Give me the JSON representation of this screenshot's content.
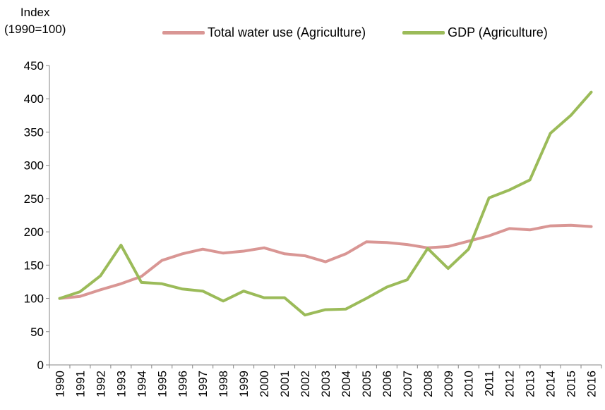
{
  "chart_data": {
    "type": "line",
    "ylabel_line1": "Index",
    "ylabel_line2": "(1990=100)",
    "xlabel": "",
    "ylim": [
      0,
      450
    ],
    "yticks": [
      0,
      50,
      100,
      150,
      200,
      250,
      300,
      350,
      400,
      450
    ],
    "grid": false,
    "legend_position": "top",
    "x": [
      "1990",
      "1991",
      "1992",
      "1993",
      "1994",
      "1995",
      "1996",
      "1997",
      "1998",
      "1999",
      "2000",
      "2001",
      "2002",
      "2003",
      "2004",
      "2005",
      "2006",
      "2007",
      "2008",
      "2009",
      "2010",
      "2011",
      "2012",
      "2013",
      "2014",
      "2015",
      "2016"
    ],
    "series": [
      {
        "name": "Total water use (Agriculture)",
        "color": "#d99694",
        "values": [
          100,
          103,
          113,
          122,
          133,
          157,
          167,
          174,
          168,
          171,
          176,
          167,
          164,
          155,
          167,
          185,
          184,
          181,
          176,
          178,
          186,
          194,
          205,
          203,
          209,
          210,
          208
        ]
      },
      {
        "name": "GDP (Agriculture)",
        "color": "#9bbb59",
        "values": [
          100,
          110,
          134,
          180,
          124,
          122,
          114,
          111,
          96,
          111,
          101,
          101,
          75,
          83,
          84,
          100,
          117,
          128,
          175,
          145,
          174,
          251,
          263,
          278,
          348,
          375,
          410
        ]
      }
    ]
  }
}
